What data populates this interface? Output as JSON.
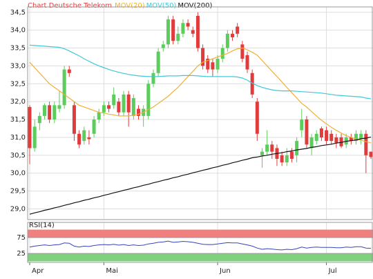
{
  "chart_data": [
    {
      "type": "candlestick",
      "title": "Chart Deutsche Telekom",
      "title_color": "#e03c3c",
      "up_color": "#5ccc5c",
      "down_color": "#e03c3c",
      "grid": true,
      "categories": [
        "Apr",
        null,
        null,
        null,
        null,
        null,
        null,
        null,
        null,
        null,
        null,
        null,
        null,
        null,
        null,
        "Mai",
        null,
        null,
        null,
        null,
        null,
        null,
        null,
        null,
        null,
        null,
        null,
        null,
        null,
        null,
        null,
        null,
        null,
        null,
        null,
        null,
        null,
        null,
        "Jun",
        null,
        null,
        null,
        null,
        null,
        null,
        null,
        null,
        null,
        null,
        null,
        null,
        null,
        null,
        null,
        null,
        null,
        null,
        null,
        null,
        null,
        "Jul",
        null,
        null,
        null,
        null,
        null,
        null,
        null,
        null,
        null
      ],
      "ohlc": [
        [
          31.85,
          31.9,
          30.25,
          30.7
        ],
        [
          30.7,
          31.5,
          30.6,
          31.3
        ],
        [
          31.4,
          31.7,
          31.2,
          31.6
        ],
        [
          31.6,
          31.95,
          31.5,
          31.9
        ],
        [
          31.9,
          32.0,
          31.4,
          31.5
        ],
        [
          31.5,
          32.0,
          31.4,
          31.9
        ],
        [
          31.8,
          32.3,
          31.7,
          31.9
        ],
        [
          31.9,
          33.0,
          31.8,
          32.9
        ],
        [
          32.9,
          33.0,
          32.7,
          32.8
        ],
        [
          31.9,
          32.0,
          30.9,
          31.1
        ],
        [
          31.1,
          31.2,
          30.7,
          30.8
        ],
        [
          30.9,
          31.3,
          30.8,
          31.2
        ],
        [
          31.0,
          31.2,
          30.8,
          30.95
        ],
        [
          31.1,
          31.6,
          31.0,
          31.5
        ],
        [
          31.5,
          31.8,
          31.4,
          31.7
        ],
        [
          31.7,
          32.0,
          31.6,
          31.9
        ],
        [
          31.9,
          32.0,
          31.7,
          31.8
        ],
        [
          31.9,
          32.4,
          31.8,
          32.2
        ],
        [
          32.0,
          32.1,
          31.6,
          31.7
        ],
        [
          31.7,
          32.3,
          31.6,
          32.2
        ],
        [
          32.2,
          32.3,
          31.3,
          31.7
        ],
        [
          31.6,
          32.2,
          31.5,
          32.1
        ],
        [
          31.8,
          31.9,
          31.5,
          31.6
        ],
        [
          31.6,
          31.9,
          31.3,
          31.8
        ],
        [
          31.6,
          32.6,
          31.5,
          32.5
        ],
        [
          32.5,
          32.9,
          32.4,
          32.8
        ],
        [
          32.8,
          33.5,
          32.7,
          33.4
        ],
        [
          33.5,
          33.7,
          33.4,
          33.6
        ],
        [
          33.6,
          34.4,
          33.5,
          34.3
        ],
        [
          34.3,
          34.4,
          33.6,
          33.7
        ],
        [
          33.7,
          34.1,
          33.6,
          33.9
        ],
        [
          33.9,
          34.3,
          33.8,
          34.2
        ],
        [
          34.2,
          34.3,
          34.0,
          34.1
        ],
        [
          34.0,
          34.1,
          33.8,
          33.9
        ],
        [
          34.4,
          34.5,
          33.4,
          33.5
        ],
        [
          33.5,
          33.6,
          32.9,
          33.0
        ],
        [
          33.2,
          33.3,
          32.8,
          32.9
        ],
        [
          33.1,
          33.2,
          32.7,
          32.9
        ],
        [
          32.9,
          33.3,
          32.8,
          33.2
        ],
        [
          33.2,
          33.6,
          33.1,
          33.5
        ],
        [
          33.5,
          34.0,
          33.4,
          33.9
        ],
        [
          33.9,
          34.0,
          33.7,
          33.8
        ],
        [
          34.1,
          34.2,
          33.8,
          33.9
        ],
        [
          33.6,
          33.7,
          33.1,
          33.2
        ],
        [
          33.3,
          33.4,
          32.8,
          32.9
        ],
        [
          32.8,
          32.9,
          32.1,
          32.2
        ],
        [
          32.0,
          32.1,
          30.9,
          31.1
        ],
        [
          30.5,
          30.7,
          30.15,
          30.6
        ],
        [
          30.6,
          31.2,
          30.5,
          30.8
        ],
        [
          30.8,
          30.9,
          30.4,
          30.6
        ],
        [
          30.7,
          30.8,
          30.2,
          30.4
        ],
        [
          30.5,
          30.6,
          30.2,
          30.3
        ],
        [
          30.3,
          30.7,
          30.2,
          30.5
        ],
        [
          30.6,
          30.7,
          30.3,
          30.4
        ],
        [
          30.5,
          31.0,
          30.3,
          30.9
        ],
        [
          31.2,
          31.8,
          31.0,
          31.5
        ],
        [
          31.5,
          31.6,
          30.7,
          30.8
        ],
        [
          30.7,
          31.1,
          30.5,
          31.0
        ],
        [
          30.9,
          31.2,
          30.8,
          31.1
        ],
        [
          31.25,
          31.3,
          30.9,
          31.0
        ],
        [
          31.2,
          31.3,
          30.8,
          30.9
        ],
        [
          31.1,
          31.2,
          30.8,
          30.9
        ],
        [
          31.0,
          31.1,
          30.7,
          30.85
        ],
        [
          31.0,
          31.1,
          30.7,
          30.75
        ],
        [
          30.8,
          31.1,
          30.7,
          31.0
        ],
        [
          31.0,
          31.1,
          30.8,
          30.9
        ],
        [
          30.9,
          31.2,
          30.8,
          31.1
        ],
        [
          30.95,
          31.2,
          30.8,
          31.1
        ],
        [
          31.1,
          31.2,
          30.0,
          30.5
        ],
        [
          30.6,
          30.6,
          30.4,
          30.45
        ]
      ],
      "series": [
        {
          "name": "MOV(20)",
          "color": "#f0b030",
          "values": [
            33.1,
            32.95,
            32.8,
            32.65,
            32.5,
            32.4,
            32.3,
            32.2,
            32.1,
            32.0,
            31.9,
            31.85,
            31.8,
            31.75,
            31.7,
            31.68,
            31.65,
            31.63,
            31.6,
            31.6,
            31.6,
            31.62,
            31.65,
            31.7,
            31.78,
            31.85,
            31.95,
            32.05,
            32.15,
            32.28,
            32.4,
            32.55,
            32.7,
            32.85,
            33.0,
            33.1,
            33.15,
            33.2,
            33.25,
            33.3,
            33.35,
            33.42,
            33.48,
            33.5,
            33.45,
            33.38,
            33.3,
            33.15,
            33.0,
            32.85,
            32.7,
            32.55,
            32.4,
            32.25,
            32.1,
            31.95,
            31.85,
            31.72,
            31.6,
            31.48,
            31.38,
            31.28,
            31.2,
            31.12,
            31.05,
            31.0,
            30.95,
            30.92,
            30.88,
            30.85
          ]
        },
        {
          "name": "MOV(50)",
          "color": "#40c8d8",
          "values": [
            33.58,
            33.57,
            33.56,
            33.55,
            33.54,
            33.53,
            33.52,
            33.48,
            33.42,
            33.35,
            33.28,
            33.2,
            33.13,
            33.06,
            33.0,
            32.95,
            32.9,
            32.86,
            32.82,
            32.79,
            32.76,
            32.74,
            32.72,
            32.71,
            32.7,
            32.7,
            32.7,
            32.71,
            32.72,
            32.72,
            32.72,
            32.73,
            32.73,
            32.73,
            32.72,
            32.71,
            32.7,
            32.7,
            32.7,
            32.7,
            32.7,
            32.7,
            32.69,
            32.66,
            32.6,
            32.52,
            32.45,
            32.4,
            32.36,
            32.33,
            32.31,
            32.3,
            32.3,
            32.3,
            32.29,
            32.28,
            32.27,
            32.26,
            32.25,
            32.24,
            32.22,
            32.2,
            32.18,
            32.17,
            32.16,
            32.15,
            32.14,
            32.13,
            32.1,
            32.08
          ]
        },
        {
          "name": "MOV(200)",
          "color": "#111111",
          "values": [
            28.85,
            28.89,
            28.92,
            28.96,
            28.99,
            29.03,
            29.06,
            29.1,
            29.13,
            29.17,
            29.2,
            29.24,
            29.27,
            29.31,
            29.34,
            29.38,
            29.41,
            29.45,
            29.48,
            29.52,
            29.55,
            29.59,
            29.62,
            29.66,
            29.69,
            29.73,
            29.76,
            29.8,
            29.83,
            29.87,
            29.9,
            29.94,
            29.97,
            30.01,
            30.04,
            30.08,
            30.11,
            30.15,
            30.18,
            30.22,
            30.25,
            30.29,
            30.32,
            30.36,
            30.39,
            30.43,
            30.45,
            30.48,
            30.5,
            30.53,
            30.55,
            30.57,
            30.6,
            30.62,
            30.65,
            30.67,
            30.69,
            30.72,
            30.74,
            30.77,
            30.79,
            30.81,
            30.84,
            30.86,
            30.89,
            30.91,
            30.93,
            30.96,
            30.98,
            31.01
          ]
        }
      ],
      "ylim": [
        28.7,
        34.65
      ],
      "yticks": [
        {
          "value": 29.0,
          "label": "29,0"
        },
        {
          "value": 29.5,
          "label": "29,5"
        },
        {
          "value": 30.0,
          "label": "30,0"
        },
        {
          "value": 30.5,
          "label": "30,5"
        },
        {
          "value": 31.0,
          "label": "31,0"
        },
        {
          "value": 31.5,
          "label": "31,5"
        },
        {
          "value": 32.0,
          "label": "32,0"
        },
        {
          "value": 32.5,
          "label": "32,5"
        },
        {
          "value": 33.0,
          "label": "33,0"
        },
        {
          "value": 33.5,
          "label": "33,5"
        },
        {
          "value": 34.0,
          "label": "34,0"
        },
        {
          "value": 34.5,
          "label": "34,5"
        }
      ]
    },
    {
      "type": "line",
      "title": "RSI(14)",
      "color": "#3344bb",
      "upper_zone_color": "#f08080",
      "lower_zone_color": "#80d080",
      "values": [
        45,
        48,
        50,
        52,
        50,
        52,
        53,
        58,
        57,
        48,
        45,
        48,
        47,
        50,
        52,
        53,
        52,
        54,
        51,
        53,
        50,
        52,
        50,
        51,
        55,
        57,
        60,
        61,
        64,
        60,
        61,
        63,
        62,
        60,
        57,
        54,
        53,
        53,
        55,
        57,
        59,
        58,
        58,
        55,
        52,
        48,
        42,
        38,
        40,
        39,
        37,
        36,
        38,
        37,
        40,
        45,
        42,
        44,
        45,
        44,
        44,
        44,
        43,
        43,
        45,
        44,
        46,
        46,
        42,
        41
      ],
      "ylim": [
        0,
        100
      ],
      "yticks": [
        25,
        75
      ]
    }
  ]
}
